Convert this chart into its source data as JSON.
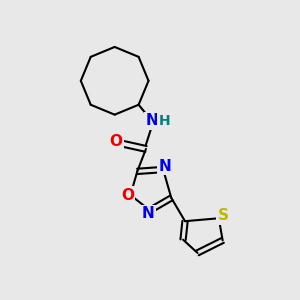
{
  "background_color": "#e8e8e8",
  "bond_color": "#000000",
  "bond_width": 1.5,
  "atom_colors": {
    "N": "#0000ee",
    "O": "#ee0000",
    "S": "#bbbb00",
    "C": "#000000",
    "H": "#008080"
  },
  "figsize": [
    3.0,
    3.0
  ],
  "dpi": 100,
  "xlim": [
    0,
    10
  ],
  "ylim": [
    0,
    10
  ]
}
